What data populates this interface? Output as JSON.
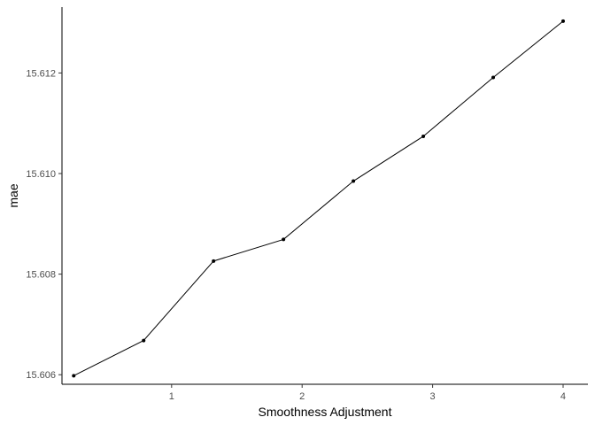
{
  "chart_data": {
    "type": "line",
    "xlabel": "Smoothness Adjustment",
    "ylabel": "mae",
    "xlim": [
      0.16,
      4.19
    ],
    "ylim": [
      15.60581,
      15.61331
    ],
    "x_ticks": [
      1,
      2,
      3,
      4
    ],
    "x_tick_labels": [
      "1",
      "2",
      "3",
      "4"
    ],
    "y_ticks": [
      15.606,
      15.608,
      15.61,
      15.612
    ],
    "y_tick_labels": [
      "15.606",
      "15.608",
      "15.610",
      "15.612"
    ],
    "grid": false,
    "legend": "none",
    "series": [
      {
        "x": [
          0.25,
          0.7857,
          1.3214,
          1.8571,
          2.3929,
          2.9286,
          3.4643,
          4.0
        ],
        "y": [
          15.60598,
          15.60668,
          15.60826,
          15.60869,
          15.60985,
          15.61074,
          15.61191,
          15.61303
        ],
        "color": "#000000"
      }
    ]
  }
}
